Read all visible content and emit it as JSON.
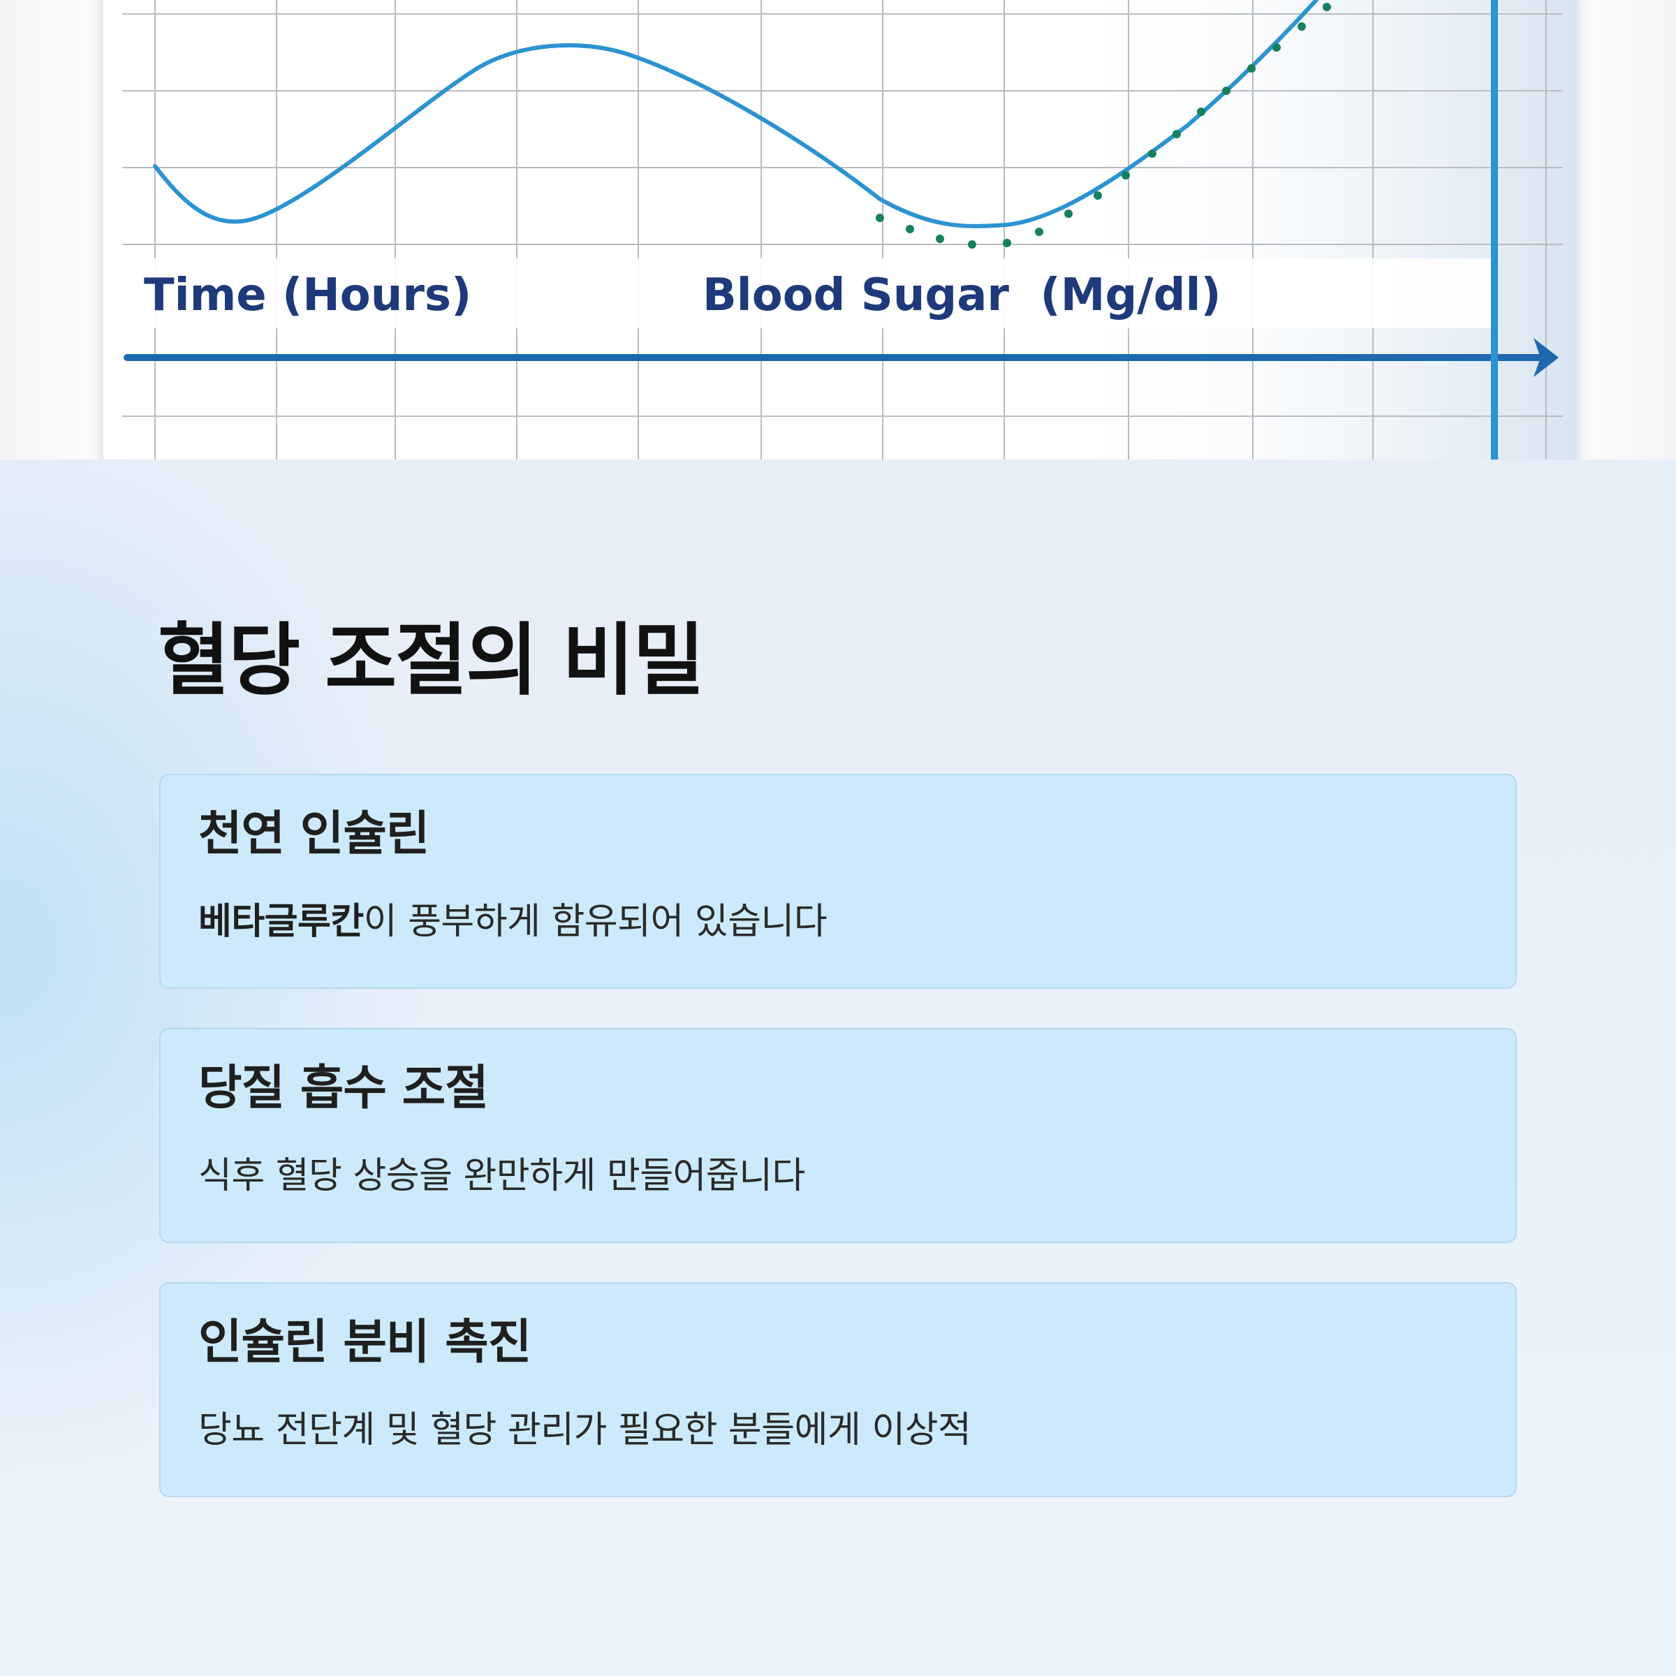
{
  "hero_graph": {
    "xlabel": "Time (Hours)",
    "ylabel": "Blood Sugar  (Mg/dl)",
    "line_color": "#2b93d1",
    "dots_color": "#15805f",
    "axis_color": "#1f68ae"
  },
  "section": {
    "title": "혈당 조절의 비밀",
    "cards": [
      {
        "title": "천연 인슐린",
        "desc_bold": "베타글루칸",
        "desc_rest": "이 풍부하게 함유되어 있습니다"
      },
      {
        "title": "당질 흡수 조절",
        "desc_rest": "식후 혈당 상승을 완만하게 만들어줍니다"
      },
      {
        "title": "인슐린 분비 촉진",
        "desc_rest": "당뇨 전단계 및 혈당 관리가 필요한 분들에게 이상적"
      }
    ]
  }
}
